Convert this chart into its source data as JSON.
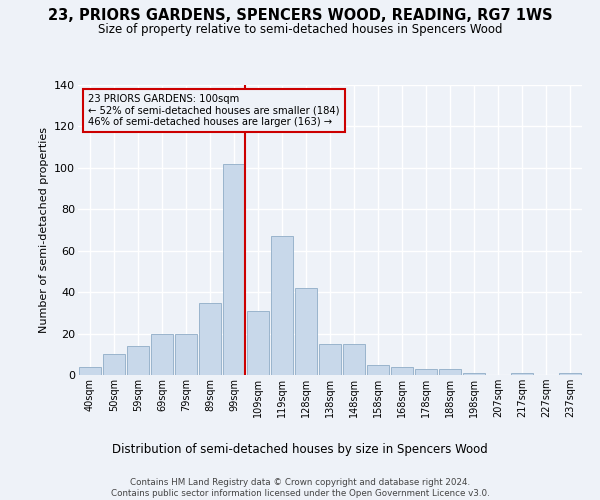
{
  "title": "23, PRIORS GARDENS, SPENCERS WOOD, READING, RG7 1WS",
  "subtitle": "Size of property relative to semi-detached houses in Spencers Wood",
  "xlabel": "Distribution of semi-detached houses by size in Spencers Wood",
  "ylabel": "Number of semi-detached properties",
  "bar_labels": [
    "40sqm",
    "50sqm",
    "59sqm",
    "69sqm",
    "79sqm",
    "89sqm",
    "99sqm",
    "109sqm",
    "119sqm",
    "128sqm",
    "138sqm",
    "148sqm",
    "158sqm",
    "168sqm",
    "178sqm",
    "188sqm",
    "198sqm",
    "207sqm",
    "217sqm",
    "227sqm",
    "237sqm"
  ],
  "bar_values": [
    4,
    10,
    14,
    20,
    20,
    35,
    102,
    31,
    67,
    42,
    15,
    15,
    5,
    4,
    3,
    3,
    1,
    0,
    1,
    0,
    1
  ],
  "bar_color": "#c8d8ea",
  "bar_edge_color": "#9ab4cc",
  "vline_color": "#cc0000",
  "vline_x_index": 6.45,
  "annotation_title": "23 PRIORS GARDENS: 100sqm",
  "annotation_line1": "← 52% of semi-detached houses are smaller (184)",
  "annotation_line2": "46% of semi-detached houses are larger (163) →",
  "annotation_box_edgecolor": "#cc0000",
  "ylim": [
    0,
    140
  ],
  "yticks": [
    0,
    20,
    40,
    60,
    80,
    100,
    120,
    140
  ],
  "footer_line1": "Contains HM Land Registry data © Crown copyright and database right 2024.",
  "footer_line2": "Contains public sector information licensed under the Open Government Licence v3.0.",
  "bg_color": "#eef2f8"
}
